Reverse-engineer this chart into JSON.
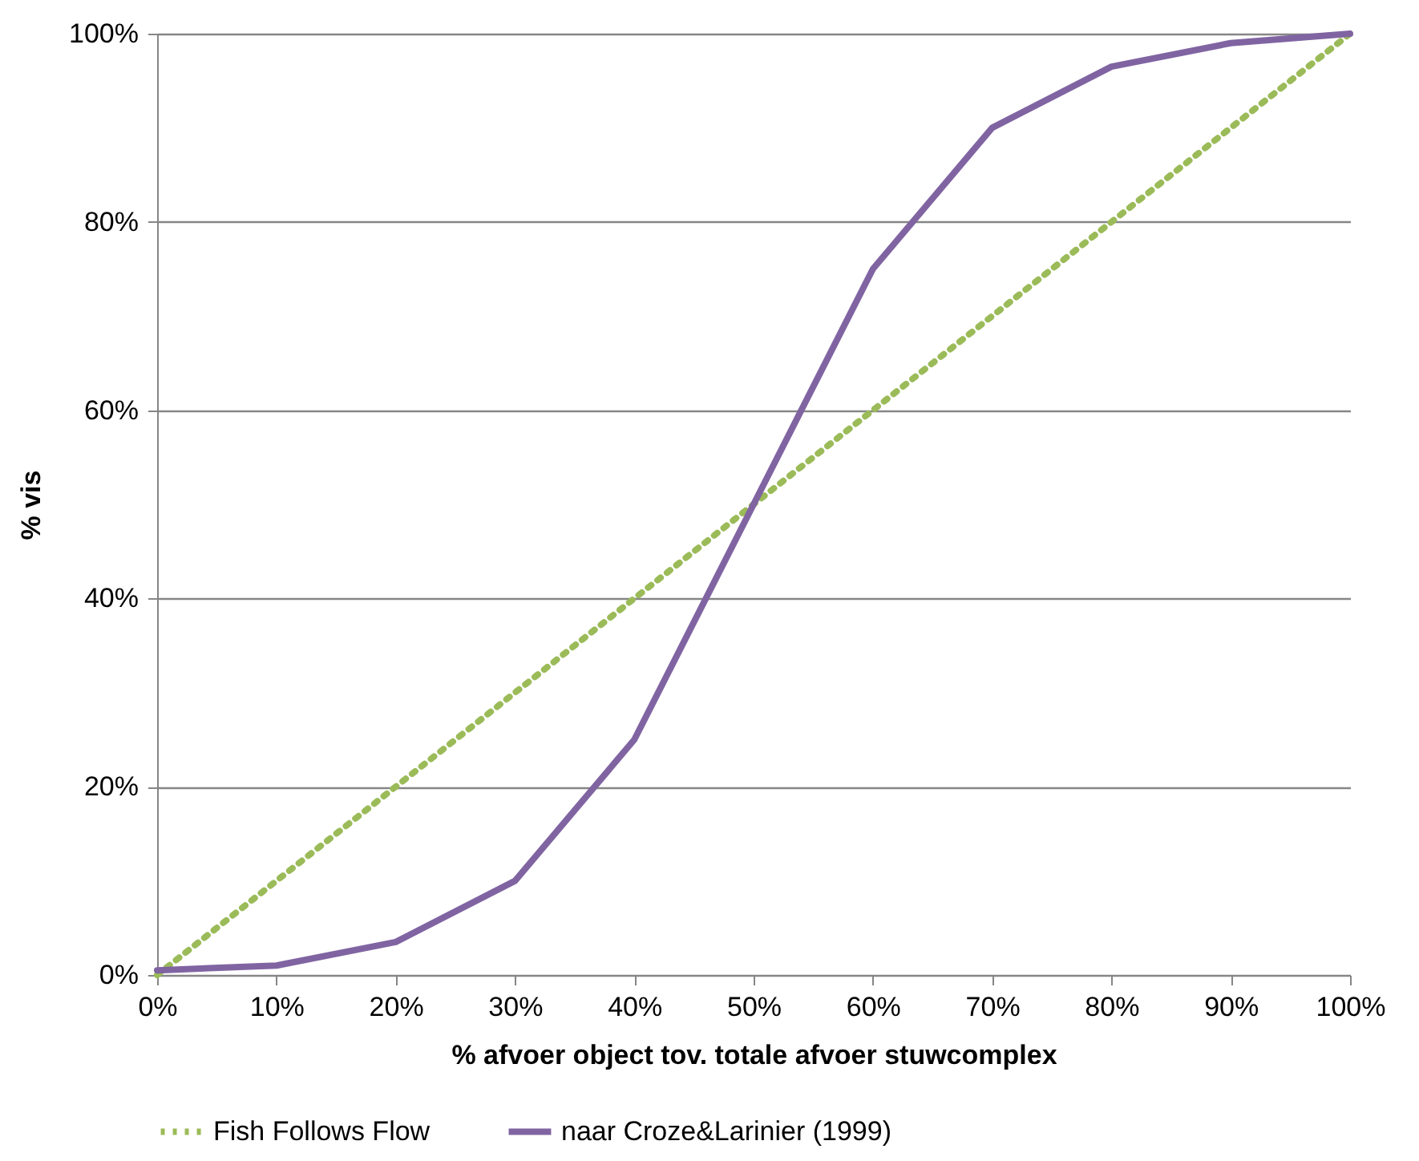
{
  "chart_data": {
    "type": "line",
    "xlabel": "% afvoer object tov. totale afvoer stuwcomplex",
    "ylabel": "% vis",
    "x": [
      0,
      10,
      20,
      30,
      40,
      50,
      60,
      70,
      80,
      90,
      100
    ],
    "series": [
      {
        "name": "Fish Follows Flow",
        "color": "#9bbb59",
        "line_style": "dotted",
        "values": [
          0,
          10,
          20,
          30,
          40,
          50,
          60,
          70,
          80,
          90,
          100
        ]
      },
      {
        "name": "naar Croze&Larinier (1999)",
        "color": "#8064a2",
        "line_style": "solid",
        "values": [
          0.5,
          1,
          3.5,
          10,
          25,
          50,
          75,
          90,
          96.5,
          99,
          100
        ]
      }
    ],
    "xlim": [
      0,
      100
    ],
    "ylim": [
      0,
      100
    ],
    "xticks": [
      {
        "value": 0,
        "label": "0%"
      },
      {
        "value": 10,
        "label": "10%"
      },
      {
        "value": 20,
        "label": "20%"
      },
      {
        "value": 30,
        "label": "30%"
      },
      {
        "value": 40,
        "label": "40%"
      },
      {
        "value": 50,
        "label": "50%"
      },
      {
        "value": 60,
        "label": "60%"
      },
      {
        "value": 70,
        "label": "70%"
      },
      {
        "value": 80,
        "label": "80%"
      },
      {
        "value": 90,
        "label": "90%"
      },
      {
        "value": 100,
        "label": "100%"
      }
    ],
    "yticks": [
      {
        "value": 0,
        "label": "0%"
      },
      {
        "value": 20,
        "label": "20%"
      },
      {
        "value": 40,
        "label": "40%"
      },
      {
        "value": 60,
        "label": "60%"
      },
      {
        "value": 80,
        "label": "80%"
      },
      {
        "value": 100,
        "label": "100%"
      }
    ],
    "grid": "y",
    "legend": "bottom",
    "marker": "none"
  }
}
